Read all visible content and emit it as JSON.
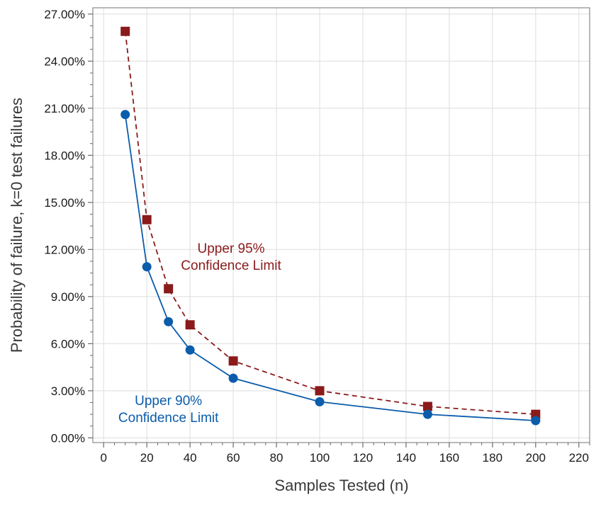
{
  "chart_data": {
    "type": "line",
    "title": "",
    "xlabel": "Samples Tested (n)",
    "ylabel": "Probability of failure, k=0 test failures",
    "xlim": [
      -5,
      225
    ],
    "ylim": [
      -0.3,
      27.4
    ],
    "xticks": [
      0,
      20,
      40,
      60,
      80,
      100,
      120,
      140,
      160,
      180,
      200,
      220
    ],
    "yticks": [
      0,
      3,
      6,
      9,
      12,
      15,
      18,
      21,
      24,
      27
    ],
    "xtick_labels": [
      "0",
      "20",
      "40",
      "60",
      "80",
      "100",
      "120",
      "140",
      "160",
      "180",
      "200",
      "220"
    ],
    "ytick_labels": [
      "0.00%",
      "3.00%",
      "6.00%",
      "9.00%",
      "12.00%",
      "15.00%",
      "18.00%",
      "21.00%",
      "24.00%",
      "27.00%"
    ],
    "grid": true,
    "series": [
      {
        "name": "Upper 95% Confidence Limit",
        "color": "#8b1a1a",
        "marker": "square",
        "line_style": "dashed",
        "x": [
          10,
          20,
          30,
          40,
          60,
          100,
          150,
          200
        ],
        "values": [
          25.9,
          13.9,
          9.5,
          7.2,
          4.9,
          3.0,
          2.0,
          1.5
        ]
      },
      {
        "name": "Upper 90% Confidence Limit",
        "color": "#0b5cab",
        "marker": "circle",
        "line_style": "solid",
        "x": [
          10,
          20,
          30,
          40,
          60,
          100,
          150,
          200
        ],
        "values": [
          20.6,
          10.9,
          7.4,
          5.6,
          3.8,
          2.3,
          1.5,
          1.1
        ]
      }
    ],
    "annotations": [
      {
        "series": 0,
        "lines": [
          "Upper 95%",
          "Confidence Limit"
        ],
        "color": "#8b1a1a",
        "anchor_x": 59,
        "anchor_y": 11.8
      },
      {
        "series": 1,
        "lines": [
          "Upper 90%",
          "Confidence Limit"
        ],
        "color": "#0b5cab",
        "anchor_x": 30,
        "anchor_y": 2.1
      }
    ]
  }
}
